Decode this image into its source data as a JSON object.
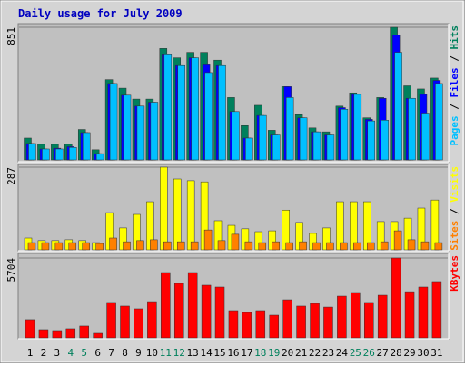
{
  "title": "Daily usage for July 2009",
  "legend_separator": " / ",
  "categories": [
    "1",
    "2",
    "3",
    "4",
    "5",
    "6",
    "7",
    "8",
    "9",
    "10",
    "11",
    "12",
    "13",
    "14",
    "15",
    "16",
    "17",
    "18",
    "19",
    "20",
    "21",
    "22",
    "23",
    "24",
    "25",
    "26",
    "27",
    "28",
    "29",
    "30",
    "31"
  ],
  "category_colors": [
    "#000000",
    "#000000",
    "#000000",
    "#00805c",
    "#00805c",
    "#000000",
    "#000000",
    "#000000",
    "#000000",
    "#000000",
    "#00805c",
    "#00805c",
    "#000000",
    "#000000",
    "#000000",
    "#000000",
    "#000000",
    "#00805c",
    "#00805c",
    "#000000",
    "#000000",
    "#000000",
    "#000000",
    "#000000",
    "#00805c",
    "#00805c",
    "#000000",
    "#000000",
    "#000000",
    "#000000",
    "#000000"
  ],
  "chart_data": [
    {
      "type": "bar",
      "ylim": [
        0,
        851
      ],
      "yticks": [
        851
      ],
      "series": [
        {
          "name": "Hits",
          "color": "#00805c",
          "values": [
            140,
            100,
            100,
            100,
            195,
            65,
            515,
            460,
            390,
            390,
            715,
            655,
            690,
            690,
            640,
            400,
            220,
            350,
            190,
            470,
            290,
            205,
            180,
            345,
            430,
            270,
            400,
            851,
            475,
            455,
            525
          ]
        },
        {
          "name": "Files",
          "color": "#0000ff",
          "values": [
            105,
            70,
            75,
            85,
            175,
            40,
            490,
            415,
            345,
            370,
            680,
            605,
            655,
            610,
            605,
            310,
            140,
            285,
            160,
            470,
            270,
            180,
            160,
            335,
            420,
            260,
            395,
            800,
            395,
            420,
            510
          ]
        },
        {
          "name": "Pages",
          "color": "#00c0ff",
          "values": [
            105,
            70,
            70,
            80,
            175,
            40,
            490,
            415,
            345,
            370,
            680,
            605,
            655,
            560,
            605,
            310,
            140,
            285,
            160,
            400,
            270,
            180,
            160,
            325,
            420,
            250,
            255,
            690,
            395,
            300,
            490
          ]
        }
      ]
    },
    {
      "type": "bar",
      "ylim": [
        0,
        287
      ],
      "yticks": [
        287
      ],
      "series": [
        {
          "name": "Visits",
          "color": "#ffff00",
          "values": [
            41,
            32,
            32,
            35,
            32,
            25,
            129,
            76,
            123,
            167,
            287,
            246,
            240,
            236,
            101,
            85,
            73,
            63,
            66,
            138,
            95,
            57,
            76,
            167,
            167,
            167,
            98,
            98,
            110,
            145,
            173
          ]
        },
        {
          "name": "Sites",
          "color": "#ff8000",
          "values": [
            25,
            25,
            25,
            25,
            25,
            22,
            41,
            28,
            32,
            35,
            28,
            28,
            28,
            69,
            32,
            54,
            28,
            25,
            28,
            25,
            28,
            25,
            25,
            25,
            25,
            25,
            28,
            66,
            35,
            28,
            25
          ]
        }
      ]
    },
    {
      "type": "bar",
      "ylim": [
        0,
        5704
      ],
      "yticks": [
        5704
      ],
      "series": [
        {
          "name": "KBytes",
          "color": "#ff0000",
          "values": [
            1300,
            585,
            520,
            650,
            845,
            325,
            2530,
            2270,
            2075,
            2590,
            4665,
            3890,
            4665,
            3760,
            3630,
            1945,
            1815,
            1945,
            1620,
            2720,
            2270,
            2460,
            2200,
            2980,
            3240,
            2530,
            3045,
            5704,
            3300,
            3630,
            4020
          ]
        }
      ]
    }
  ]
}
